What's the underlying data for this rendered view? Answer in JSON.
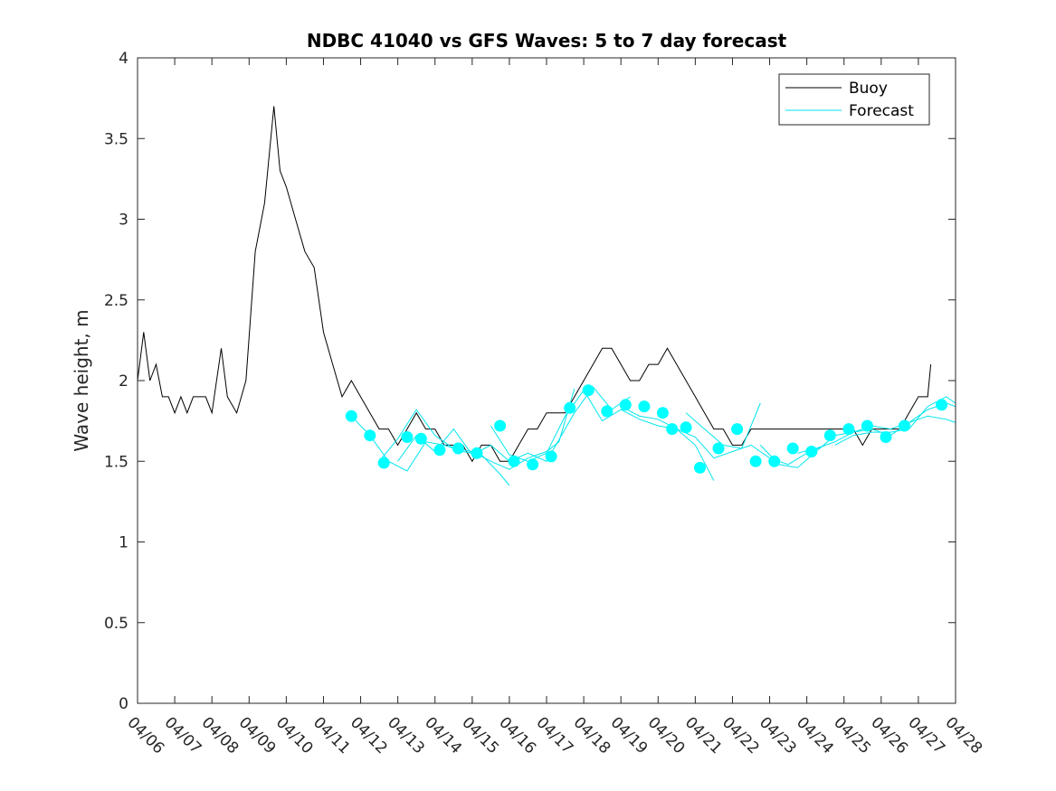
{
  "chart_data": {
    "type": "line",
    "title": "NDBC 41040 vs GFS Waves: 5 to 7 day forecast",
    "xlabel": "",
    "ylabel": "Wave height, m",
    "x_start": "04/06",
    "xlim": [
      "04/06",
      "04/28"
    ],
    "ylim": [
      0,
      4
    ],
    "x_ticks": [
      "04/06",
      "04/07",
      "04/08",
      "04/09",
      "04/10",
      "04/11",
      "04/12",
      "04/13",
      "04/14",
      "04/15",
      "04/16",
      "04/17",
      "04/18",
      "04/19",
      "04/20",
      "04/21",
      "04/22",
      "04/23",
      "04/24",
      "04/25",
      "04/26",
      "04/27",
      "04/28"
    ],
    "y_ticks": [
      0,
      0.5,
      1,
      1.5,
      2,
      2.5,
      3,
      3.5,
      4
    ],
    "y_tick_labels": [
      "0",
      "0.5",
      "1",
      "1.5",
      "2",
      "2.5",
      "3",
      "3.5",
      "4"
    ],
    "grid": false,
    "legend": {
      "position": "top-right",
      "entries": [
        {
          "label": "Buoy",
          "color": "#000000"
        },
        {
          "label": "Forecast",
          "color": "#00e5ee"
        }
      ]
    },
    "colors": {
      "buoy": "#000000",
      "forecast": "#00e5ee",
      "marker": "#00ffff"
    },
    "series": [
      {
        "name": "Buoy",
        "points": [
          [
            "04/06 00:00",
            2.0
          ],
          [
            "04/06 04:00",
            2.3
          ],
          [
            "04/06 08:00",
            2.0
          ],
          [
            "04/06 12:00",
            2.1
          ],
          [
            "04/06 16:00",
            1.9
          ],
          [
            "04/06 20:00",
            1.9
          ],
          [
            "04/07 00:00",
            1.8
          ],
          [
            "04/07 04:00",
            1.9
          ],
          [
            "04/07 08:00",
            1.8
          ],
          [
            "04/07 12:00",
            1.9
          ],
          [
            "04/07 16:00",
            1.9
          ],
          [
            "04/07 20:00",
            1.9
          ],
          [
            "04/08 00:00",
            1.8
          ],
          [
            "04/08 06:00",
            2.2
          ],
          [
            "04/08 10:00",
            1.9
          ],
          [
            "04/08 16:00",
            1.8
          ],
          [
            "04/08 22:00",
            2.0
          ],
          [
            "04/09 04:00",
            2.8
          ],
          [
            "04/09 10:00",
            3.1
          ],
          [
            "04/09 16:00",
            3.7
          ],
          [
            "04/09 20:00",
            3.3
          ],
          [
            "04/10 00:00",
            3.2
          ],
          [
            "04/10 06:00",
            3.0
          ],
          [
            "04/10 12:00",
            2.8
          ],
          [
            "04/10 18:00",
            2.7
          ],
          [
            "04/11 00:00",
            2.3
          ],
          [
            "04/11 06:00",
            2.1
          ],
          [
            "04/11 12:00",
            1.9
          ],
          [
            "04/11 18:00",
            2.0
          ],
          [
            "04/12 00:00",
            1.9
          ],
          [
            "04/12 06:00",
            1.8
          ],
          [
            "04/12 12:00",
            1.7
          ],
          [
            "04/12 18:00",
            1.7
          ],
          [
            "04/13 00:00",
            1.6
          ],
          [
            "04/13 06:00",
            1.7
          ],
          [
            "04/13 12:00",
            1.8
          ],
          [
            "04/13 18:00",
            1.7
          ],
          [
            "04/14 00:00",
            1.7
          ],
          [
            "04/14 06:00",
            1.6
          ],
          [
            "04/14 12:00",
            1.6
          ],
          [
            "04/14 18:00",
            1.6
          ],
          [
            "04/15 00:00",
            1.5
          ],
          [
            "04/15 06:00",
            1.6
          ],
          [
            "04/15 12:00",
            1.6
          ],
          [
            "04/15 18:00",
            1.5
          ],
          [
            "04/16 00:00",
            1.5
          ],
          [
            "04/16 06:00",
            1.6
          ],
          [
            "04/16 12:00",
            1.7
          ],
          [
            "04/16 18:00",
            1.7
          ],
          [
            "04/17 00:00",
            1.8
          ],
          [
            "04/17 06:00",
            1.8
          ],
          [
            "04/17 12:00",
            1.8
          ],
          [
            "04/17 18:00",
            1.9
          ],
          [
            "04/18 00:00",
            2.0
          ],
          [
            "04/18 06:00",
            2.1
          ],
          [
            "04/18 12:00",
            2.2
          ],
          [
            "04/18 18:00",
            2.2
          ],
          [
            "04/19 00:00",
            2.1
          ],
          [
            "04/19 06:00",
            2.0
          ],
          [
            "04/19 12:00",
            2.0
          ],
          [
            "04/19 18:00",
            2.1
          ],
          [
            "04/20 00:00",
            2.1
          ],
          [
            "04/20 06:00",
            2.2
          ],
          [
            "04/20 12:00",
            2.1
          ],
          [
            "04/20 18:00",
            2.0
          ],
          [
            "04/21 00:00",
            1.9
          ],
          [
            "04/21 06:00",
            1.8
          ],
          [
            "04/21 12:00",
            1.7
          ],
          [
            "04/21 18:00",
            1.7
          ],
          [
            "04/22 00:00",
            1.6
          ],
          [
            "04/22 06:00",
            1.6
          ],
          [
            "04/22 12:00",
            1.7
          ],
          [
            "04/22 18:00",
            1.7
          ],
          [
            "04/23 00:00",
            1.7
          ],
          [
            "04/23 06:00",
            1.7
          ],
          [
            "04/23 12:00",
            1.7
          ],
          [
            "04/23 18:00",
            1.7
          ],
          [
            "04/24 00:00",
            1.7
          ],
          [
            "04/24 06:00",
            1.7
          ],
          [
            "04/24 12:00",
            1.7
          ],
          [
            "04/24 18:00",
            1.7
          ],
          [
            "04/25 00:00",
            1.7
          ],
          [
            "04/25 06:00",
            1.7
          ],
          [
            "04/25 12:00",
            1.6
          ],
          [
            "04/25 18:00",
            1.7
          ],
          [
            "04/26 00:00",
            1.7
          ],
          [
            "04/26 06:00",
            1.7
          ],
          [
            "04/26 12:00",
            1.7
          ],
          [
            "04/26 18:00",
            1.8
          ],
          [
            "04/27 00:00",
            1.9
          ],
          [
            "04/27 06:00",
            1.9
          ],
          [
            "04/27 08:00",
            2.1
          ]
        ]
      },
      {
        "name": "Forecast",
        "lines": [
          [
            [
              "04/11 18:00",
              1.78
            ],
            [
              "04/12 06:00",
              1.66
            ],
            [
              "04/12 18:00",
              1.5
            ],
            [
              "04/13 06:00",
              1.44
            ],
            [
              "04/13 18:00",
              1.62
            ],
            [
              "04/14 06:00",
              1.6
            ],
            [
              "04/14 18:00",
              1.56
            ],
            [
              "04/15 06:00",
              1.54
            ],
            [
              "04/15 18:00",
              1.42
            ],
            [
              "04/16 00:00",
              1.35
            ]
          ],
          [
            [
              "04/12 12:00",
              1.5
            ],
            [
              "04/13 00:00",
              1.64
            ],
            [
              "04/13 12:00",
              1.82
            ],
            [
              "04/14 00:00",
              1.66
            ],
            [
              "04/14 12:00",
              1.58
            ],
            [
              "04/15 00:00",
              1.56
            ],
            [
              "04/15 12:00",
              1.5
            ],
            [
              "04/16 00:00",
              1.45
            ],
            [
              "04/16 12:00",
              1.52
            ],
            [
              "04/17 00:00",
              1.56
            ],
            [
              "04/17 08:00",
              1.62
            ],
            [
              "04/17 18:00",
              1.95
            ]
          ],
          [
            [
              "04/13 00:00",
              1.5
            ],
            [
              "04/13 12:00",
              1.66
            ],
            [
              "04/14 00:00",
              1.56
            ],
            [
              "04/14 12:00",
              1.7
            ],
            [
              "04/15 00:00",
              1.54
            ],
            [
              "04/15 12:00",
              1.6
            ],
            [
              "04/16 00:00",
              1.5
            ],
            [
              "04/16 12:00",
              1.55
            ],
            [
              "04/17 00:00",
              1.5
            ],
            [
              "04/17 18:00",
              1.8
            ],
            [
              "04/18 06:00",
              1.96
            ],
            [
              "04/18 18:00",
              1.82
            ],
            [
              "04/19 06:00",
              1.9
            ]
          ],
          [
            [
              "04/15 12:00",
              1.72
            ],
            [
              "04/16 00:00",
              1.54
            ],
            [
              "04/16 12:00",
              1.5
            ],
            [
              "04/17 00:00",
              1.55
            ],
            [
              "04/17 12:00",
              1.78
            ],
            [
              "04/18 00:00",
              1.94
            ],
            [
              "04/18 12:00",
              1.75
            ],
            [
              "04/19 00:00",
              1.82
            ],
            [
              "04/19 12:00",
              1.76
            ],
            [
              "04/20 00:00",
              1.72
            ],
            [
              "04/20 12:00",
              1.7
            ],
            [
              "04/21 00:00",
              1.6
            ],
            [
              "04/21 12:00",
              1.38
            ]
          ],
          [
            [
              "04/19 00:00",
              1.84
            ],
            [
              "04/19 12:00",
              1.78
            ],
            [
              "04/20 00:00",
              1.76
            ],
            [
              "04/20 12:00",
              1.7
            ],
            [
              "04/21 00:00",
              1.65
            ],
            [
              "04/21 12:00",
              1.52
            ],
            [
              "04/22 00:00",
              1.56
            ],
            [
              "04/22 12:00",
              1.6
            ],
            [
              "04/23 00:00",
              1.52
            ],
            [
              "04/23 12:00",
              1.48
            ],
            [
              "04/24 00:00",
              1.55
            ],
            [
              "04/24 12:00",
              1.6
            ]
          ],
          [
            [
              "04/20 18:00",
              1.8
            ],
            [
              "04/21 06:00",
              1.7
            ],
            [
              "04/21 18:00",
              1.6
            ],
            [
              "04/22 06:00",
              1.58
            ],
            [
              "04/22 18:00",
              1.86
            ]
          ],
          [
            [
              "04/22 18:00",
              1.6
            ],
            [
              "04/23 06:00",
              1.48
            ],
            [
              "04/23 18:00",
              1.46
            ],
            [
              "04/24 06:00",
              1.56
            ],
            [
              "04/24 18:00",
              1.66
            ],
            [
              "04/25 06:00",
              1.68
            ],
            [
              "04/25 18:00",
              1.7
            ],
            [
              "04/26 06:00",
              1.66
            ],
            [
              "04/26 18:00",
              1.74
            ],
            [
              "04/27 06:00",
              1.82
            ],
            [
              "04/27 18:00",
              1.86
            ],
            [
              "04/28 00:00",
              1.84
            ]
          ],
          [
            [
              "04/23 18:00",
              1.55
            ],
            [
              "04/24 06:00",
              1.58
            ],
            [
              "04/24 18:00",
              1.62
            ],
            [
              "04/25 06:00",
              1.68
            ],
            [
              "04/25 18:00",
              1.72
            ],
            [
              "04/26 06:00",
              1.7
            ],
            [
              "04/26 18:00",
              1.74
            ],
            [
              "04/27 06:00",
              1.78
            ],
            [
              "04/27 18:00",
              1.76
            ],
            [
              "04/28 00:00",
              1.74
            ]
          ],
          [
            [
              "04/24 18:00",
              1.6
            ],
            [
              "04/25 06:00",
              1.66
            ],
            [
              "04/25 18:00",
              1.68
            ],
            [
              "04/26 06:00",
              1.68
            ],
            [
              "04/26 18:00",
              1.7
            ],
            [
              "04/27 06:00",
              1.84
            ],
            [
              "04/27 18:00",
              1.9
            ],
            [
              "04/28 00:00",
              1.86
            ]
          ]
        ],
        "markers": [
          [
            "04/11 18:00",
            1.78
          ],
          [
            "04/12 06:00",
            1.66
          ],
          [
            "04/12 15:00",
            1.49
          ],
          [
            "04/13 06:00",
            1.65
          ],
          [
            "04/13 15:00",
            1.64
          ],
          [
            "04/14 03:00",
            1.57
          ],
          [
            "04/14 15:00",
            1.58
          ],
          [
            "04/15 03:00",
            1.55
          ],
          [
            "04/15 18:00",
            1.72
          ],
          [
            "04/16 03:00",
            1.5
          ],
          [
            "04/16 15:00",
            1.48
          ],
          [
            "04/17 03:00",
            1.53
          ],
          [
            "04/17 15:00",
            1.83
          ],
          [
            "04/18 03:00",
            1.94
          ],
          [
            "04/18 15:00",
            1.81
          ],
          [
            "04/19 03:00",
            1.85
          ],
          [
            "04/19 15:00",
            1.84
          ],
          [
            "04/20 03:00",
            1.8
          ],
          [
            "04/20 09:00",
            1.7
          ],
          [
            "04/20 18:00",
            1.71
          ],
          [
            "04/21 03:00",
            1.46
          ],
          [
            "04/21 15:00",
            1.58
          ],
          [
            "04/22 03:00",
            1.7
          ],
          [
            "04/22 15:00",
            1.5
          ],
          [
            "04/23 03:00",
            1.5
          ],
          [
            "04/23 15:00",
            1.58
          ],
          [
            "04/24 03:00",
            1.56
          ],
          [
            "04/24 15:00",
            1.66
          ],
          [
            "04/25 03:00",
            1.7
          ],
          [
            "04/25 15:00",
            1.72
          ],
          [
            "04/26 03:00",
            1.65
          ],
          [
            "04/26 15:00",
            1.72
          ],
          [
            "04/27 15:00",
            1.85
          ]
        ]
      }
    ]
  }
}
